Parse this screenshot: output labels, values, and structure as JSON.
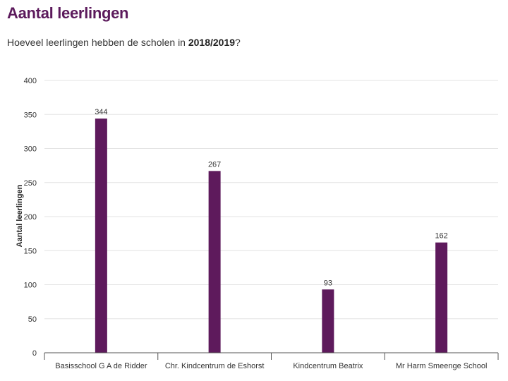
{
  "header": {
    "title": "Aantal leerlingen",
    "subtitle_pre": "Hoeveel leerlingen hebben de scholen in ",
    "subtitle_bold": "2018/2019",
    "subtitle_post": "?"
  },
  "colors": {
    "bar": "#5e1a5c",
    "title": "#5c1a5c",
    "grid": "#e3e3e3",
    "axis": "#555555"
  },
  "chart_data": {
    "type": "bar",
    "title": "Aantal leerlingen",
    "subtitle": "Hoeveel leerlingen hebben de scholen in 2018/2019?",
    "xlabel": "",
    "ylabel": "Aantal leerlingen",
    "categories": [
      "Basisschool G A de Ridder",
      "Chr. Kindcentrum de Eshorst",
      "Kindcentrum Beatrix",
      "Mr Harm Smeenge School"
    ],
    "values": [
      344,
      267,
      93,
      162
    ],
    "ylim": [
      0,
      400
    ],
    "yticks": [
      0,
      50,
      100,
      150,
      200,
      250,
      300,
      350,
      400
    ],
    "grid": true,
    "legend": "none",
    "data_labels": true
  }
}
